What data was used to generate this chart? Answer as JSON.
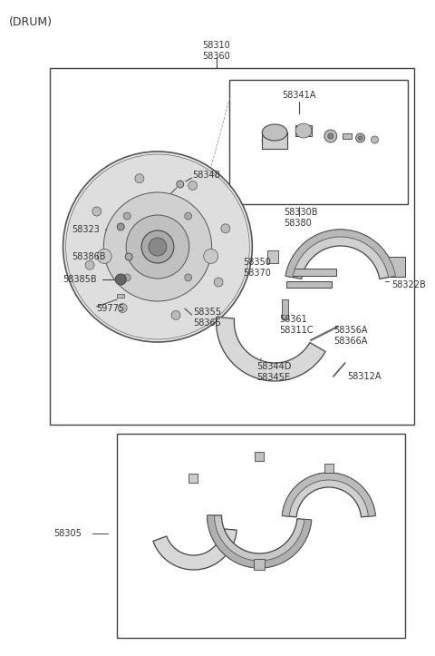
{
  "bg": "#ffffff",
  "title": "(DRUM)",
  "label_58310": "58310\n58360",
  "label_58341A": "58341A",
  "label_58348": "58348",
  "label_58323": "58323",
  "label_58386B": "58386B",
  "label_58385B": "58385B",
  "label_59775": "59775",
  "label_58355": "58355\n58365",
  "label_58330B": "58330B\n58380",
  "label_58350": "58350\n58370",
  "label_58322B": "58322B",
  "label_58361": "58361\n58311C",
  "label_58356A": "58356A\n58366A",
  "label_58344D": "58344D\n58345E",
  "label_58312A": "58312A",
  "label_58305": "58305",
  "fs": 7.0,
  "line_color": "#444444",
  "text_color": "#333333"
}
